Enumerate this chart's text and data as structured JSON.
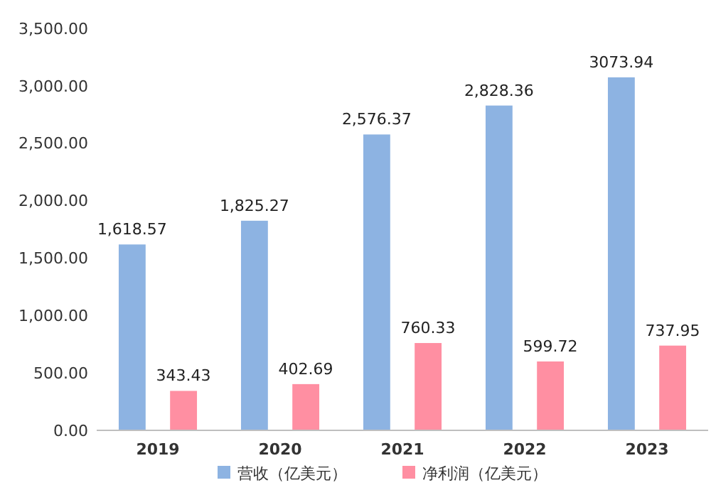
{
  "chart_data": {
    "type": "bar",
    "categories": [
      "2019",
      "2020",
      "2021",
      "2022",
      "2023"
    ],
    "series": [
      {
        "name": "营收（亿美元）",
        "color": "#8db3e2",
        "values": [
          1618.57,
          1825.27,
          2576.37,
          2828.36,
          3073.94
        ],
        "value_labels": [
          "1,618.57",
          "1,825.27",
          "2,576.37",
          "2,828.36",
          "3073.94"
        ]
      },
      {
        "name": "净利润（亿美元）",
        "color": "#ff8fa2",
        "values": [
          343.43,
          402.69,
          760.33,
          599.72,
          737.95
        ],
        "value_labels": [
          "343.43",
          "402.69",
          "760.33",
          "599.72",
          "737.95"
        ]
      }
    ],
    "ylim": [
      0,
      3500
    ],
    "yticks": [
      {
        "value": 0,
        "label": "0.00"
      },
      {
        "value": 500,
        "label": "500.00"
      },
      {
        "value": 1000,
        "label": "1,000.00"
      },
      {
        "value": 1500,
        "label": "1,500.00"
      },
      {
        "value": 2000,
        "label": "2,000.00"
      },
      {
        "value": 2500,
        "label": "2,500.00"
      },
      {
        "value": 3000,
        "label": "3,000.00"
      },
      {
        "value": 3500,
        "label": "3,500.00"
      }
    ],
    "grid": false,
    "legend": "bottom"
  }
}
